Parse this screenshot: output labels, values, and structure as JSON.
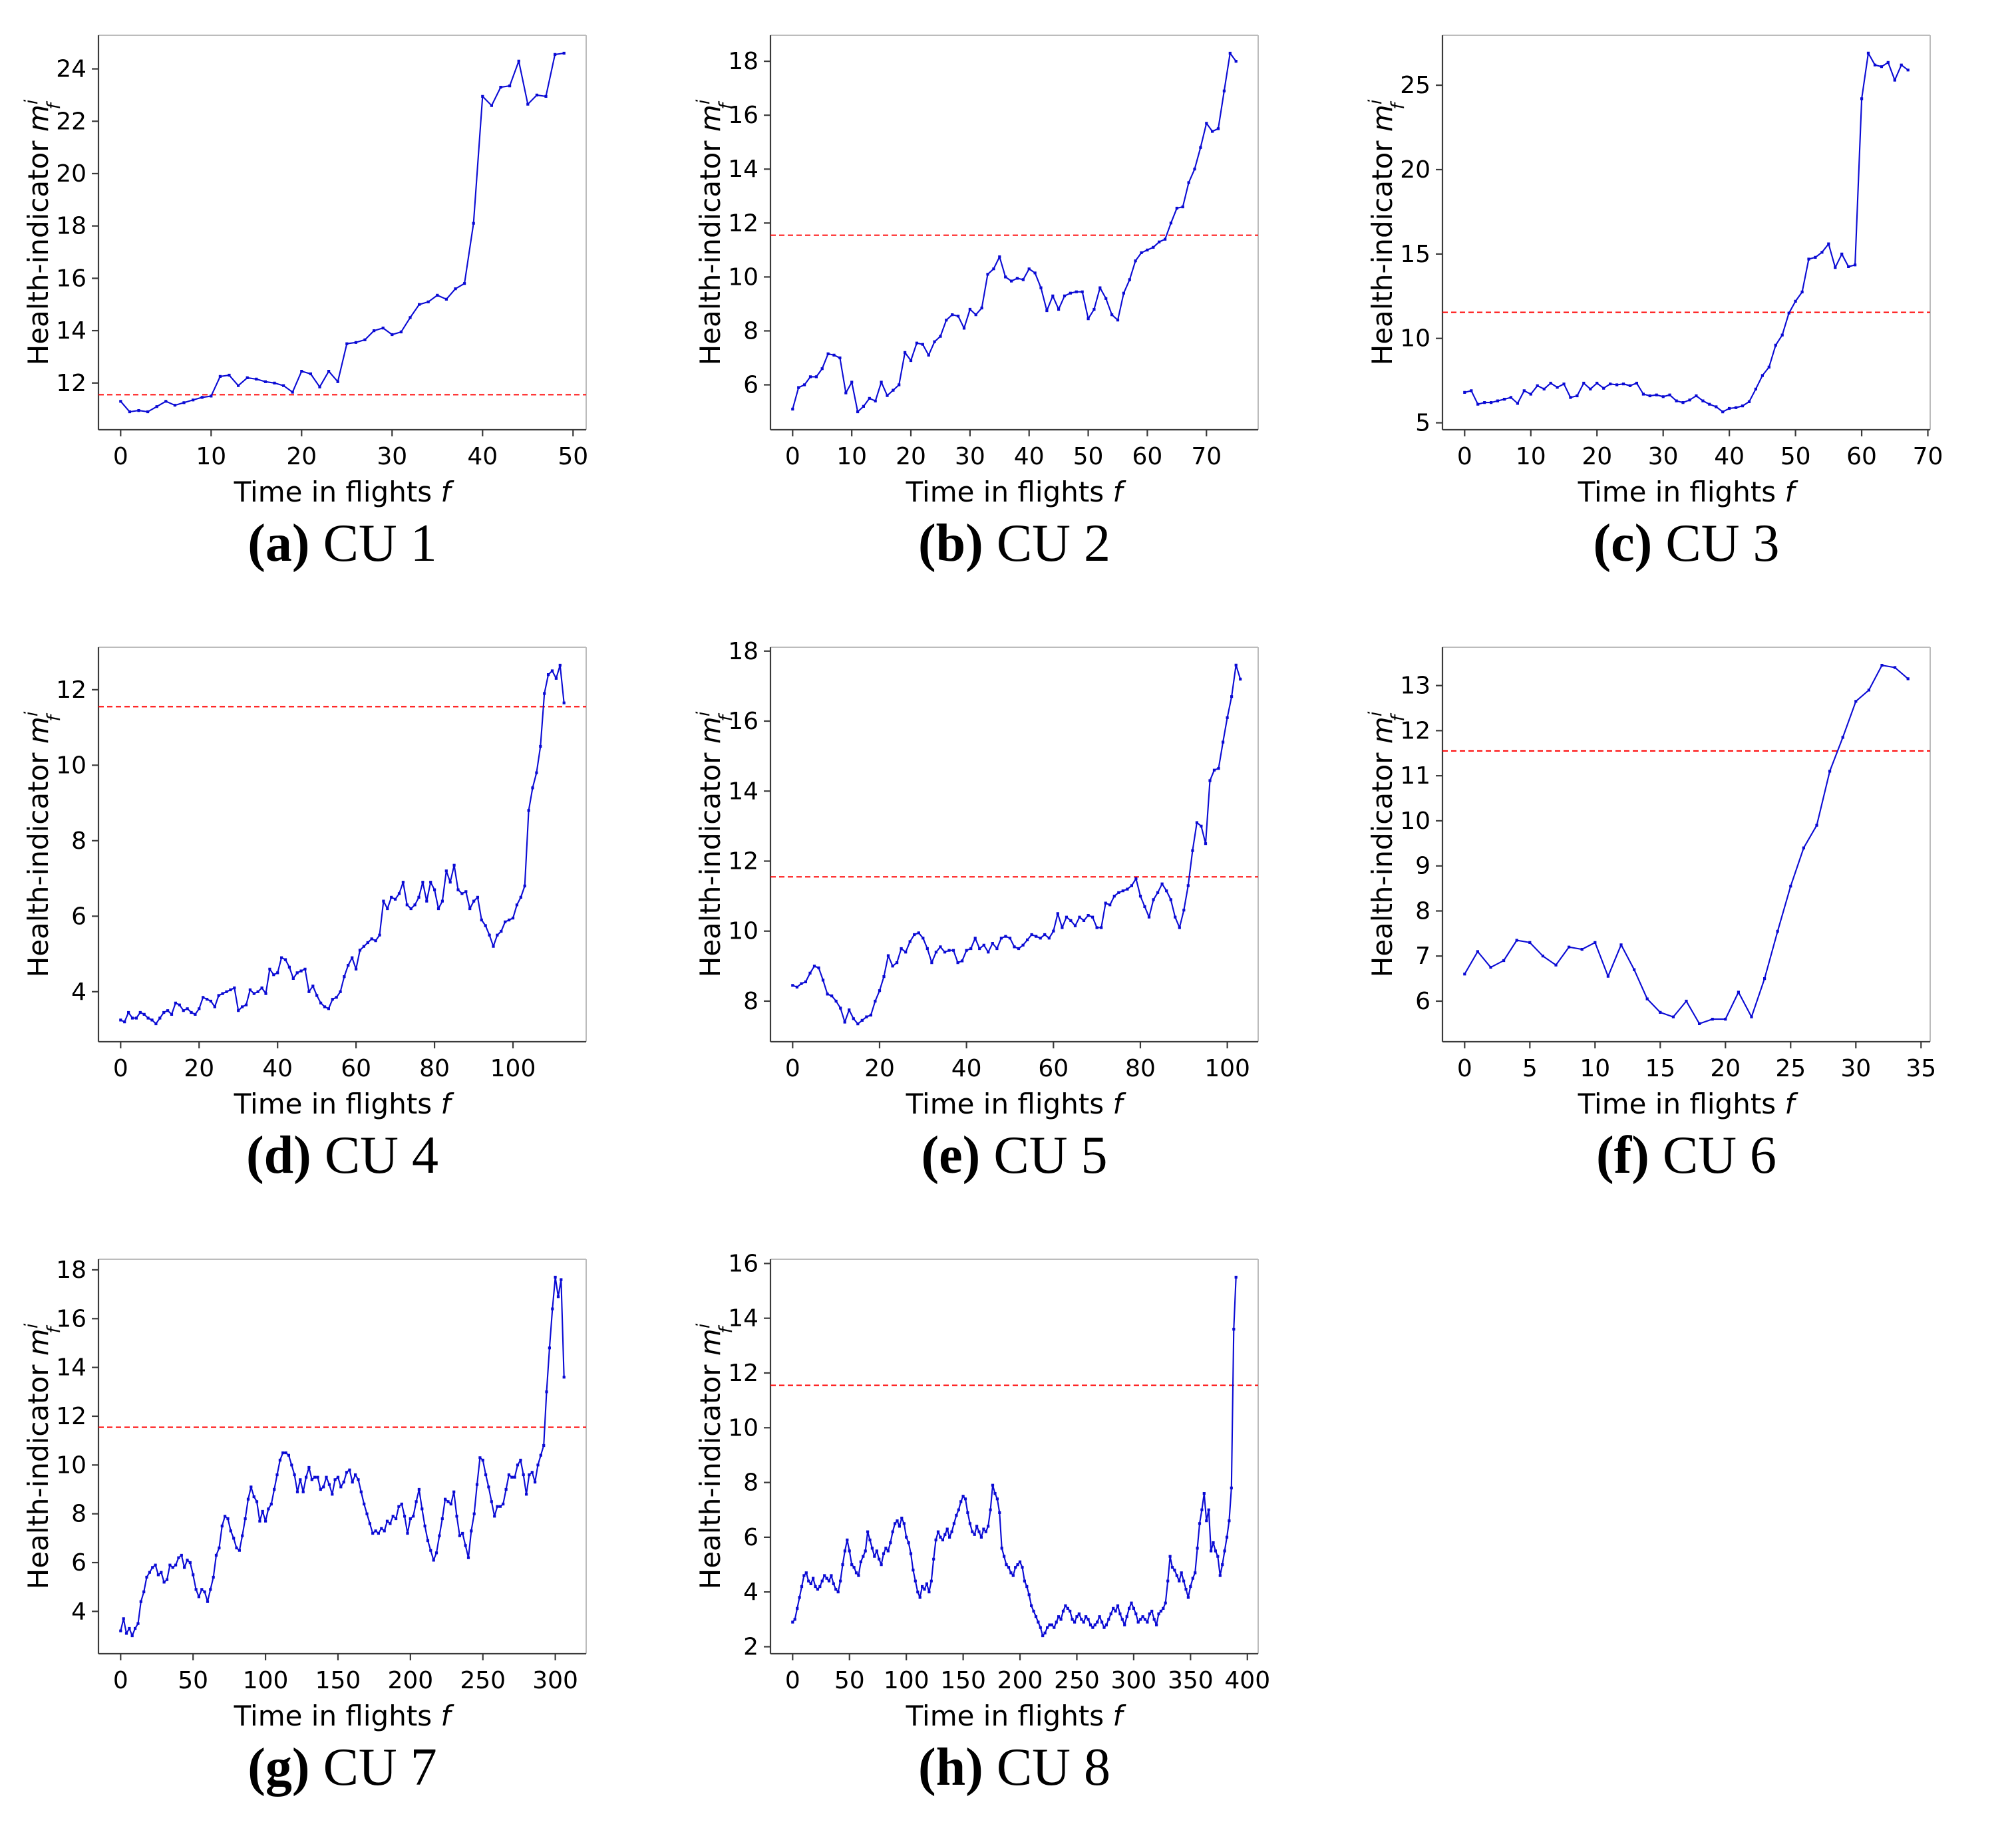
{
  "chart_data": {
    "type": "line",
    "xlabel": "Time in flights f",
    "ylabel": "Health-indicator m_f^i",
    "ylabel_parts": {
      "prefix": "Health-indicator ",
      "base": "m",
      "sup": "i",
      "sub": "f"
    },
    "xlabel_parts": {
      "prefix": "Time in flights ",
      "italic": "f"
    },
    "threshold_value": 11.55,
    "legend": "none",
    "grid": false,
    "colors": {
      "line": "#0a0ad4",
      "threshold": "#ff0000",
      "spine_dark": "#3a3a3a",
      "spine_light": "#bcbcbc",
      "text": "#000000"
    },
    "charts": [
      {
        "id": "cu1",
        "caption_letter": "(a)",
        "caption_label": "CU 1",
        "x_step": 1,
        "xlim": [
          -2.45,
          51.45
        ],
        "ylim": [
          10.215,
          25.285
        ],
        "xticks": [
          0,
          10,
          20,
          30,
          40,
          50
        ],
        "yticks": [
          12,
          14,
          16,
          18,
          20,
          22,
          24
        ],
        "values": [
          11.3,
          10.9,
          10.95,
          10.9,
          11.1,
          11.3,
          11.15,
          11.25,
          11.35,
          11.45,
          11.5,
          12.25,
          12.3,
          11.9,
          12.2,
          12.15,
          12.05,
          12.0,
          11.9,
          11.65,
          12.45,
          12.35,
          11.85,
          12.45,
          12.05,
          13.5,
          13.55,
          13.65,
          14.0,
          14.1,
          13.85,
          13.95,
          14.5,
          15.0,
          15.1,
          15.35,
          15.2,
          15.6,
          15.8,
          18.1,
          22.95,
          22.6,
          23.3,
          23.35,
          24.3,
          22.65,
          23.0,
          22.95,
          24.55,
          24.6
        ]
      },
      {
        "id": "cu2",
        "caption_letter": "(b)",
        "caption_label": "CU 2",
        "x_step": 1,
        "xlim": [
          -3.75,
          78.75
        ],
        "ylim": [
          4.335,
          18.965
        ],
        "xticks": [
          0,
          10,
          20,
          30,
          40,
          50,
          60,
          70
        ],
        "yticks": [
          6,
          8,
          10,
          12,
          14,
          16,
          18
        ],
        "values": [
          5.1,
          5.9,
          6.0,
          6.3,
          6.3,
          6.6,
          7.15,
          7.1,
          7.0,
          5.7,
          6.1,
          5.0,
          5.2,
          5.5,
          5.4,
          6.1,
          5.6,
          5.8,
          6.0,
          7.2,
          6.9,
          7.55,
          7.5,
          7.1,
          7.6,
          7.8,
          8.4,
          8.6,
          8.55,
          8.1,
          8.8,
          8.6,
          8.85,
          10.1,
          10.3,
          10.75,
          10.0,
          9.85,
          9.95,
          9.9,
          10.3,
          10.15,
          9.6,
          8.75,
          9.3,
          8.8,
          9.3,
          9.4,
          9.45,
          9.45,
          8.45,
          8.8,
          9.6,
          9.2,
          8.6,
          8.4,
          9.4,
          9.9,
          10.6,
          10.9,
          11.0,
          11.1,
          11.3,
          11.4,
          12.0,
          12.55,
          12.6,
          13.5,
          14.0,
          14.8,
          15.7,
          15.4,
          15.5,
          16.9,
          18.3,
          18.0
        ]
      },
      {
        "id": "cu3",
        "caption_letter": "(c)",
        "caption_label": "CU 3",
        "x_step": 1,
        "xlim": [
          -3.35,
          70.35
        ],
        "ylim": [
          4.59,
          27.96
        ],
        "xticks": [
          0,
          10,
          20,
          30,
          40,
          50,
          60,
          70
        ],
        "yticks": [
          5,
          10,
          15,
          20,
          25
        ],
        "values": [
          6.8,
          6.9,
          6.1,
          6.2,
          6.2,
          6.3,
          6.4,
          6.5,
          6.15,
          6.9,
          6.7,
          7.2,
          7.0,
          7.35,
          7.1,
          7.3,
          6.5,
          6.6,
          7.35,
          7.0,
          7.35,
          7.05,
          7.3,
          7.25,
          7.3,
          7.2,
          7.35,
          6.7,
          6.6,
          6.65,
          6.55,
          6.65,
          6.3,
          6.2,
          6.35,
          6.6,
          6.3,
          6.1,
          5.95,
          5.65,
          5.85,
          5.9,
          6.0,
          6.25,
          7.0,
          7.8,
          8.3,
          9.6,
          10.2,
          11.5,
          12.2,
          12.75,
          14.7,
          14.8,
          15.1,
          15.6,
          14.2,
          15.0,
          14.25,
          14.35,
          24.2,
          26.9,
          26.2,
          26.1,
          26.35,
          25.3,
          26.2,
          25.9
        ]
      },
      {
        "id": "cu4",
        "caption_letter": "(d)",
        "caption_label": "CU 4",
        "x_step": 1,
        "xlim": [
          -5.65,
          118.65
        ],
        "ylim": [
          2.675,
          13.125
        ],
        "xticks": [
          0,
          20,
          40,
          60,
          80,
          100
        ],
        "yticks": [
          4,
          6,
          8,
          10,
          12
        ],
        "values": [
          3.25,
          3.2,
          3.45,
          3.3,
          3.3,
          3.45,
          3.4,
          3.3,
          3.25,
          3.15,
          3.3,
          3.45,
          3.5,
          3.4,
          3.7,
          3.65,
          3.5,
          3.55,
          3.45,
          3.4,
          3.55,
          3.85,
          3.8,
          3.75,
          3.6,
          3.9,
          3.95,
          4.0,
          4.05,
          4.1,
          3.5,
          3.6,
          3.65,
          4.05,
          3.95,
          4.0,
          4.1,
          3.95,
          4.6,
          4.45,
          4.5,
          4.9,
          4.85,
          4.65,
          4.35,
          4.5,
          4.55,
          4.6,
          4.0,
          4.15,
          3.9,
          3.7,
          3.6,
          3.55,
          3.8,
          3.85,
          4.0,
          4.4,
          4.7,
          4.9,
          4.6,
          5.1,
          5.2,
          5.3,
          5.4,
          5.35,
          5.5,
          6.4,
          6.2,
          6.5,
          6.45,
          6.6,
          6.9,
          6.3,
          6.2,
          6.3,
          6.5,
          6.9,
          6.4,
          6.9,
          6.7,
          6.2,
          6.4,
          7.2,
          6.9,
          7.35,
          6.7,
          6.6,
          6.65,
          6.2,
          6.4,
          6.5,
          5.9,
          5.75,
          5.5,
          5.2,
          5.5,
          5.6,
          5.85,
          5.9,
          5.95,
          6.3,
          6.5,
          6.8,
          8.8,
          9.4,
          9.8,
          10.5,
          11.9,
          12.4,
          12.5,
          12.3,
          12.65,
          11.65
        ]
      },
      {
        "id": "cu5",
        "caption_letter": "(e)",
        "caption_label": "CU 5",
        "x_step": 1,
        "xlim": [
          -5.1,
          107.1
        ],
        "ylim": [
          6.84,
          18.11
        ],
        "xticks": [
          0,
          20,
          40,
          60,
          80,
          100
        ],
        "yticks": [
          8,
          10,
          12,
          14,
          16,
          18
        ],
        "values": [
          8.45,
          8.4,
          8.5,
          8.55,
          8.8,
          9.0,
          8.95,
          8.6,
          8.2,
          8.15,
          8.0,
          7.8,
          7.4,
          7.75,
          7.5,
          7.35,
          7.45,
          7.55,
          7.6,
          8.0,
          8.3,
          8.7,
          9.3,
          9.0,
          9.1,
          9.5,
          9.4,
          9.7,
          9.9,
          9.95,
          9.8,
          9.5,
          9.1,
          9.4,
          9.55,
          9.4,
          9.45,
          9.45,
          9.1,
          9.15,
          9.45,
          9.5,
          9.8,
          9.5,
          9.6,
          9.4,
          9.65,
          9.5,
          9.8,
          9.85,
          9.8,
          9.55,
          9.5,
          9.6,
          9.75,
          9.9,
          9.85,
          9.8,
          9.9,
          9.8,
          10.0,
          10.5,
          10.1,
          10.4,
          10.3,
          10.15,
          10.4,
          10.3,
          10.45,
          10.4,
          10.1,
          10.1,
          10.8,
          10.75,
          11.0,
          11.1,
          11.15,
          11.2,
          11.3,
          11.5,
          11.0,
          10.7,
          10.4,
          10.9,
          11.1,
          11.35,
          11.15,
          10.9,
          10.4,
          10.1,
          10.6,
          11.3,
          12.3,
          13.1,
          13.0,
          12.5,
          14.3,
          14.6,
          14.65,
          15.4,
          16.1,
          16.7,
          17.6,
          17.2
        ]
      },
      {
        "id": "cu6",
        "caption_letter": "(f)",
        "caption_label": "CU 6",
        "x_step": 1,
        "xlim": [
          -1.7,
          35.7
        ],
        "ylim": [
          5.1,
          13.85
        ],
        "xticks": [
          0,
          5,
          10,
          15,
          20,
          25,
          30,
          35
        ],
        "yticks": [
          6,
          7,
          8,
          9,
          10,
          11,
          12,
          13
        ],
        "values": [
          6.6,
          7.1,
          6.75,
          6.9,
          7.35,
          7.3,
          7.0,
          6.8,
          7.2,
          7.15,
          7.3,
          6.55,
          7.25,
          6.7,
          6.05,
          5.75,
          5.65,
          6.0,
          5.5,
          5.6,
          5.6,
          6.2,
          5.65,
          6.5,
          7.55,
          8.55,
          9.4,
          9.9,
          11.1,
          11.85,
          12.65,
          12.9,
          13.45,
          13.4,
          13.15
        ]
      },
      {
        "id": "cu7",
        "caption_letter": "(g)",
        "caption_label": "CU 7",
        "x_step": 2,
        "xlim": [
          -15.3,
          321.3
        ],
        "ylim": [
          2.265,
          18.435
        ],
        "xticks": [
          0,
          50,
          100,
          150,
          200,
          250,
          300
        ],
        "yticks": [
          4,
          6,
          8,
          10,
          12,
          14,
          16,
          18
        ],
        "values": [
          3.2,
          3.7,
          3.1,
          3.3,
          3.0,
          3.3,
          3.5,
          4.4,
          4.8,
          5.4,
          5.6,
          5.8,
          5.9,
          5.5,
          5.6,
          5.2,
          5.3,
          5.9,
          5.8,
          5.9,
          6.2,
          6.3,
          5.8,
          6.1,
          6.0,
          5.5,
          4.9,
          4.6,
          4.9,
          4.8,
          4.4,
          4.9,
          5.4,
          6.3,
          6.6,
          7.5,
          7.9,
          7.8,
          7.3,
          7.0,
          6.6,
          6.5,
          7.1,
          7.8,
          8.6,
          9.1,
          8.7,
          8.5,
          7.7,
          8.1,
          7.7,
          8.2,
          8.4,
          9.0,
          9.6,
          10.2,
          10.5,
          10.5,
          10.4,
          10.0,
          9.6,
          8.9,
          9.4,
          8.9,
          9.5,
          9.9,
          9.4,
          9.5,
          9.5,
          9.0,
          9.1,
          9.5,
          9.2,
          8.8,
          9.4,
          9.5,
          9.1,
          9.3,
          9.7,
          9.8,
          9.3,
          9.6,
          9.4,
          8.9,
          8.4,
          8.0,
          7.6,
          7.2,
          7.3,
          7.2,
          7.4,
          7.3,
          7.7,
          7.6,
          7.9,
          7.8,
          8.3,
          8.4,
          7.9,
          7.2,
          7.8,
          7.9,
          8.5,
          9.0,
          8.2,
          7.5,
          6.9,
          6.5,
          6.1,
          6.4,
          7.1,
          7.8,
          8.6,
          8.5,
          8.4,
          8.9,
          7.9,
          7.1,
          7.2,
          6.7,
          6.2,
          7.3,
          8.0,
          9.2,
          10.3,
          10.2,
          9.6,
          9.1,
          8.5,
          7.9,
          8.3,
          8.3,
          8.4,
          9.0,
          9.6,
          9.5,
          9.5,
          10.0,
          10.2,
          9.6,
          8.8,
          9.6,
          9.7,
          9.3,
          10.0,
          10.4,
          10.8,
          13.0,
          14.8,
          16.4,
          17.7,
          16.9,
          17.6,
          13.6
        ]
      },
      {
        "id": "cu8",
        "caption_letter": "(h)",
        "caption_label": "CU 8",
        "x_step": 2,
        "xlim": [
          -19.5,
          409.5
        ],
        "ylim": [
          1.745,
          16.155
        ],
        "xticks": [
          0,
          50,
          100,
          150,
          200,
          250,
          300,
          350,
          400
        ],
        "yticks": [
          2,
          4,
          6,
          8,
          10,
          12,
          14,
          16
        ],
        "values": [
          2.9,
          3.0,
          3.4,
          3.8,
          4.2,
          4.6,
          4.7,
          4.4,
          4.3,
          4.5,
          4.2,
          4.1,
          4.2,
          4.4,
          4.6,
          4.5,
          4.4,
          4.6,
          4.3,
          4.1,
          4.0,
          4.4,
          5.0,
          5.5,
          5.9,
          5.5,
          5.0,
          4.9,
          4.7,
          4.6,
          5.1,
          5.3,
          5.5,
          6.2,
          5.9,
          5.6,
          5.3,
          5.5,
          5.2,
          5.0,
          5.4,
          5.6,
          5.5,
          5.8,
          6.2,
          6.5,
          6.6,
          6.4,
          6.7,
          6.5,
          6.0,
          5.8,
          5.4,
          4.8,
          4.4,
          4.0,
          3.8,
          4.2,
          4.1,
          4.3,
          4.0,
          4.4,
          5.2,
          5.9,
          6.2,
          6.0,
          5.9,
          6.1,
          6.3,
          6.0,
          6.2,
          6.5,
          6.8,
          7.0,
          7.3,
          7.5,
          7.4,
          6.9,
          6.5,
          6.2,
          6.1,
          6.4,
          6.2,
          6.0,
          6.3,
          6.2,
          6.4,
          7.0,
          7.9,
          7.6,
          7.4,
          6.9,
          5.6,
          5.3,
          5.0,
          4.9,
          4.7,
          4.6,
          4.9,
          5.0,
          5.1,
          4.9,
          4.4,
          4.2,
          3.9,
          3.5,
          3.3,
          3.1,
          2.9,
          2.7,
          2.4,
          2.5,
          2.7,
          2.8,
          2.8,
          2.7,
          2.9,
          3.1,
          3.0,
          3.3,
          3.5,
          3.4,
          3.3,
          3.0,
          2.9,
          3.1,
          3.2,
          3.0,
          2.9,
          3.1,
          3.0,
          2.8,
          2.7,
          2.8,
          2.9,
          3.1,
          2.9,
          2.7,
          2.8,
          3.0,
          3.2,
          3.4,
          3.3,
          3.5,
          3.2,
          3.0,
          2.8,
          3.1,
          3.4,
          3.6,
          3.4,
          3.2,
          2.9,
          3.0,
          3.1,
          3.0,
          2.9,
          3.2,
          3.3,
          3.0,
          2.8,
          3.2,
          3.3,
          3.4,
          3.6,
          4.4,
          5.3,
          4.9,
          4.8,
          4.6,
          4.4,
          4.7,
          4.4,
          4.1,
          3.8,
          4.2,
          4.5,
          4.7,
          5.6,
          6.5,
          7.0,
          7.6,
          6.6,
          7.0,
          5.5,
          5.8,
          5.5,
          5.3,
          4.6,
          5.0,
          5.5,
          6.0,
          6.6,
          7.8,
          13.6,
          15.5
        ]
      }
    ]
  }
}
